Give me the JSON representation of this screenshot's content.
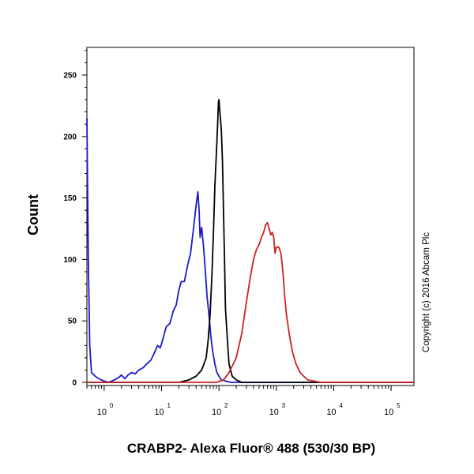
{
  "chart_data": {
    "type": "line",
    "title": "",
    "xlabel": "CRABP2- Alexa Fluor® 488 (530/30 BP)",
    "ylabel": "Count",
    "x_scale": "log",
    "xlim": [
      0.5,
      250000
    ],
    "ylim": [
      0,
      280
    ],
    "x_ticks": [
      {
        "base": "10",
        "exp": "0",
        "value": 1
      },
      {
        "base": "10",
        "exp": "1",
        "value": 10
      },
      {
        "base": "10",
        "exp": "2",
        "value": 100
      },
      {
        "base": "10",
        "exp": "3",
        "value": 1000
      },
      {
        "base": "10",
        "exp": "4",
        "value": 10000
      },
      {
        "base": "10",
        "exp": "5",
        "value": 100000
      }
    ],
    "y_ticks": [
      0,
      50,
      100,
      150,
      200,
      250
    ],
    "grid": false,
    "legend": "none",
    "series": [
      {
        "color": "#1a1acc",
        "points": [
          [
            0.5,
            215
          ],
          [
            0.53,
            100
          ],
          [
            0.56,
            30
          ],
          [
            0.6,
            8
          ],
          [
            0.7,
            5
          ],
          [
            0.8,
            3
          ],
          [
            0.9,
            2
          ],
          [
            1.0,
            1
          ],
          [
            1.2,
            0
          ],
          [
            1.5,
            2
          ],
          [
            1.8,
            4
          ],
          [
            2.0,
            6
          ],
          [
            2.3,
            3
          ],
          [
            2.6,
            6
          ],
          [
            3.0,
            8
          ],
          [
            3.5,
            7
          ],
          [
            4.0,
            10
          ],
          [
            4.8,
            12
          ],
          [
            5.5,
            15
          ],
          [
            6.5,
            18
          ],
          [
            7.5,
            24
          ],
          [
            8.5,
            30
          ],
          [
            9.5,
            28
          ],
          [
            10.5,
            35
          ],
          [
            12,
            45
          ],
          [
            14,
            48
          ],
          [
            16,
            58
          ],
          [
            18,
            63
          ],
          [
            20,
            75
          ],
          [
            22,
            82
          ],
          [
            25,
            82
          ],
          [
            27,
            90
          ],
          [
            30,
            100
          ],
          [
            32,
            105
          ],
          [
            35,
            120
          ],
          [
            37,
            130
          ],
          [
            39,
            140
          ],
          [
            41,
            148
          ],
          [
            43,
            155
          ],
          [
            45,
            140
          ],
          [
            47,
            118
          ],
          [
            50,
            126
          ],
          [
            54,
            110
          ],
          [
            58,
            90
          ],
          [
            62,
            70
          ],
          [
            67,
            55
          ],
          [
            72,
            38
          ],
          [
            78,
            25
          ],
          [
            85,
            15
          ],
          [
            92,
            8
          ],
          [
            100,
            5
          ],
          [
            110,
            2
          ],
          [
            130,
            1
          ],
          [
            160,
            0
          ],
          [
            250000,
            0
          ]
        ]
      },
      {
        "color": "#000000",
        "points": [
          [
            0.5,
            0
          ],
          [
            20,
            0
          ],
          [
            30,
            2
          ],
          [
            40,
            5
          ],
          [
            50,
            10
          ],
          [
            60,
            20
          ],
          [
            65,
            35
          ],
          [
            70,
            55
          ],
          [
            75,
            85
          ],
          [
            80,
            120
          ],
          [
            85,
            160
          ],
          [
            90,
            185
          ],
          [
            95,
            210
          ],
          [
            98,
            228
          ],
          [
            100,
            230
          ],
          [
            103,
            222
          ],
          [
            106,
            215
          ],
          [
            110,
            205
          ],
          [
            115,
            180
          ],
          [
            120,
            140
          ],
          [
            125,
            100
          ],
          [
            130,
            60
          ],
          [
            140,
            35
          ],
          [
            150,
            15
          ],
          [
            170,
            5
          ],
          [
            200,
            2
          ],
          [
            250,
            0
          ],
          [
            250000,
            0
          ]
        ]
      },
      {
        "color": "#cc2222",
        "points": [
          [
            0.5,
            0
          ],
          [
            90,
            0
          ],
          [
            120,
            2
          ],
          [
            150,
            8
          ],
          [
            200,
            20
          ],
          [
            250,
            40
          ],
          [
            300,
            65
          ],
          [
            350,
            85
          ],
          [
            400,
            100
          ],
          [
            450,
            108
          ],
          [
            500,
            112
          ],
          [
            550,
            118
          ],
          [
            600,
            122
          ],
          [
            650,
            128
          ],
          [
            700,
            130
          ],
          [
            750,
            125
          ],
          [
            800,
            120
          ],
          [
            850,
            122
          ],
          [
            900,
            118
          ],
          [
            950,
            105
          ],
          [
            1000,
            110
          ],
          [
            1100,
            110
          ],
          [
            1200,
            105
          ],
          [
            1300,
            90
          ],
          [
            1400,
            70
          ],
          [
            1500,
            55
          ],
          [
            1700,
            38
          ],
          [
            1900,
            25
          ],
          [
            2200,
            15
          ],
          [
            2600,
            8
          ],
          [
            3000,
            5
          ],
          [
            3500,
            2
          ],
          [
            4500,
            1
          ],
          [
            6000,
            0
          ],
          [
            250000,
            0
          ]
        ]
      }
    ]
  },
  "watermark": "Copyright (c) 2016 Abcam Plc"
}
